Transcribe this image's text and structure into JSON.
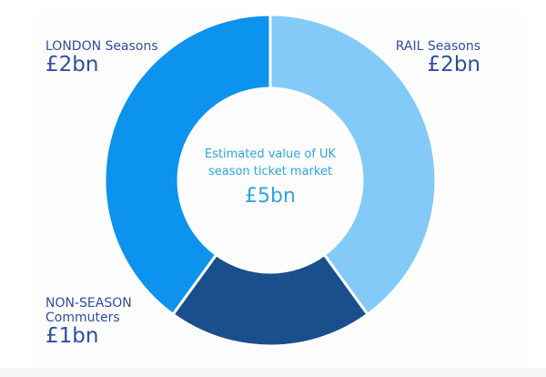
{
  "chart_data": {
    "type": "pie",
    "center": {
      "caption": "Estimated value of UK season ticket market",
      "total": "£5bn"
    },
    "slices": [
      {
        "label": "RAIL Seasons",
        "value_label": "£2bn",
        "value": 2,
        "color": "#83caf9"
      },
      {
        "label": "NON-SEASON Commuters",
        "value_label": "£1bn",
        "value": 1,
        "color": "#1a4f8d"
      },
      {
        "label": "LONDON Seasons",
        "value_label": "£2bn",
        "value": 2,
        "color": "#0b93ee"
      }
    ]
  }
}
